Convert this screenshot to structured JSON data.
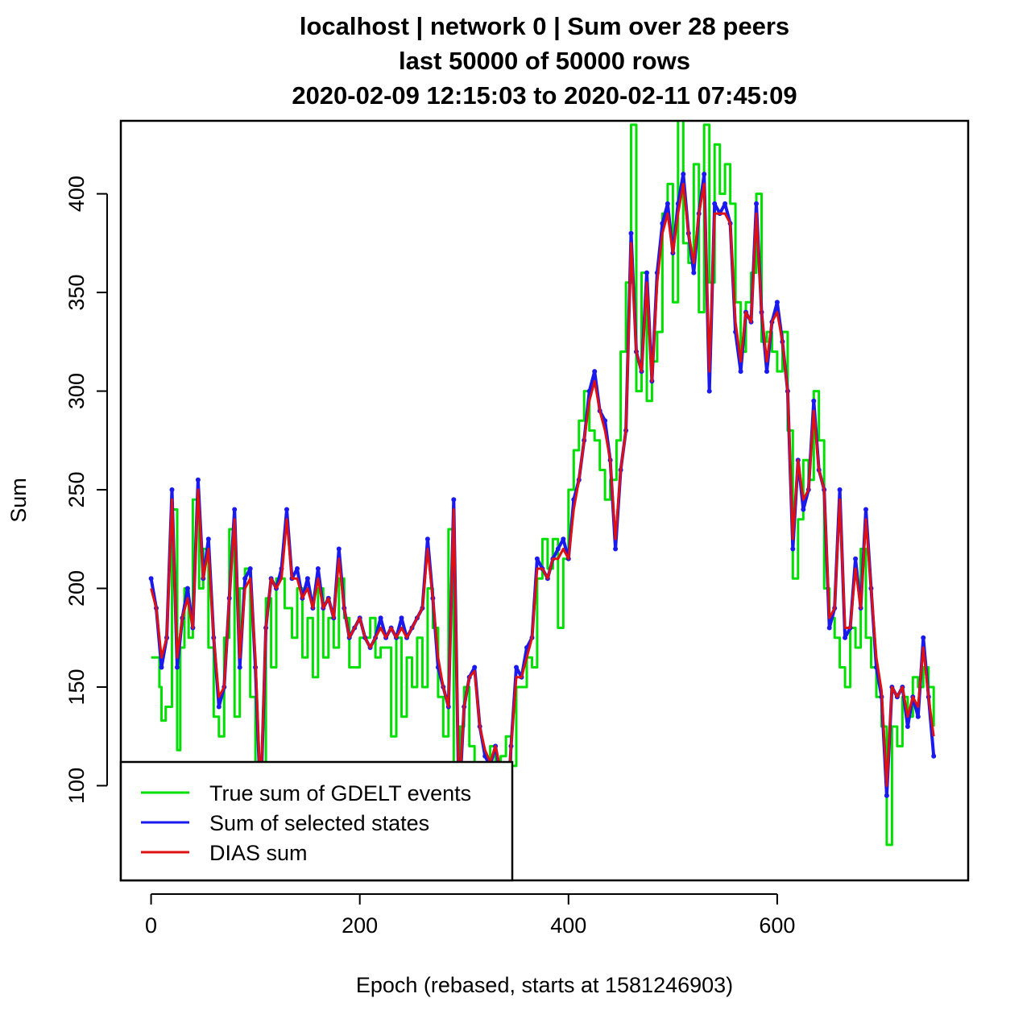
{
  "chart_data": {
    "type": "line",
    "title": [
      "localhost | network 0 | Sum over 28 peers",
      "last 50000 of 50000 rows",
      "2020-02-09 12:15:03 to 2020-02-11 07:45:09"
    ],
    "xlabel": "Epoch (rebased, starts at 1581246903)",
    "ylabel": "Sum",
    "xlim": [
      -29,
      783
    ],
    "ylim": [
      52,
      437
    ],
    "x_ticks": [
      0,
      200,
      400,
      600
    ],
    "y_ticks": [
      100,
      150,
      200,
      250,
      300,
      350,
      400
    ],
    "grid": false,
    "legend_position": "bottom-left",
    "series": [
      {
        "name": "True sum of GDELT events",
        "color": "#00e000",
        "style": "step",
        "x": [
          0,
          8,
          10,
          14,
          20,
          25,
          28,
          32,
          36,
          40,
          46,
          50,
          55,
          60,
          65,
          70,
          75,
          80,
          85,
          90,
          95,
          100,
          104,
          110,
          115,
          120,
          128,
          135,
          140,
          145,
          150,
          155,
          160,
          165,
          170,
          175,
          180,
          185,
          190,
          200,
          210,
          215,
          220,
          230,
          235,
          240,
          245,
          250,
          255,
          260,
          265,
          270,
          275,
          280,
          285,
          290,
          296,
          300,
          305,
          310,
          318,
          325,
          330,
          335,
          340,
          345,
          350,
          360,
          365,
          370,
          375,
          380,
          385,
          390,
          395,
          400,
          405,
          410,
          415,
          420,
          425,
          430,
          435,
          440,
          446,
          450,
          455,
          460,
          465,
          470,
          475,
          480,
          485,
          490,
          495,
          500,
          505,
          510,
          515,
          520,
          525,
          530,
          535,
          540,
          545,
          550,
          555,
          560,
          565,
          570,
          575,
          580,
          585,
          590,
          595,
          600,
          605,
          610,
          615,
          620,
          625,
          630,
          635,
          640,
          645,
          650,
          655,
          660,
          665,
          670,
          675,
          680,
          685,
          690,
          695,
          700,
          705,
          710,
          715,
          720,
          725,
          730,
          735,
          740,
          745,
          750
        ],
        "y": [
          165,
          150,
          133,
          140,
          240,
          118,
          170,
          200,
          175,
          245,
          200,
          220,
          170,
          135,
          125,
          175,
          230,
          135,
          200,
          210,
          145,
          100,
          60,
          195,
          160,
          205,
          190,
          175,
          200,
          165,
          185,
          155,
          200,
          165,
          185,
          170,
          205,
          185,
          160,
          175,
          185,
          165,
          170,
          125,
          175,
          135,
          165,
          150,
          175,
          150,
          200,
          180,
          145,
          125,
          230,
          55,
          130,
          150,
          120,
          100,
          80,
          120,
          55,
          115,
          125,
          110,
          150,
          165,
          160,
          205,
          225,
          210,
          225,
          180,
          215,
          250,
          270,
          285,
          300,
          280,
          275,
          260,
          245,
          255,
          275,
          320,
          355,
          435,
          300,
          360,
          295,
          315,
          330,
          390,
          405,
          345,
          440,
          375,
          365,
          415,
          340,
          435,
          355,
          425,
          400,
          415,
          395,
          345,
          320,
          345,
          360,
          400,
          325,
          330,
          320,
          310,
          330,
          280,
          205,
          235,
          265,
          255,
          300,
          275,
          200,
          185,
          175,
          160,
          150,
          180,
          170,
          220,
          175,
          160,
          145,
          130,
          70,
          130,
          120,
          145,
          135,
          155,
          150,
          160,
          150,
          130
        ]
      },
      {
        "name": "Sum of selected states",
        "color": "#1a1aee",
        "style": "line",
        "x": [
          0,
          5,
          10,
          15,
          20,
          25,
          30,
          35,
          40,
          45,
          50,
          55,
          60,
          65,
          70,
          75,
          80,
          85,
          90,
          95,
          100,
          105,
          110,
          115,
          120,
          125,
          130,
          135,
          140,
          145,
          150,
          155,
          160,
          165,
          170,
          175,
          180,
          185,
          190,
          195,
          200,
          205,
          210,
          215,
          220,
          225,
          230,
          235,
          240,
          245,
          250,
          255,
          260,
          265,
          270,
          275,
          280,
          285,
          290,
          295,
          300,
          305,
          310,
          315,
          320,
          325,
          330,
          335,
          340,
          345,
          350,
          355,
          360,
          365,
          370,
          375,
          380,
          385,
          390,
          395,
          400,
          405,
          410,
          415,
          420,
          425,
          430,
          435,
          440,
          445,
          450,
          455,
          460,
          465,
          470,
          475,
          480,
          485,
          490,
          495,
          500,
          505,
          510,
          515,
          520,
          525,
          530,
          535,
          540,
          545,
          550,
          555,
          560,
          565,
          570,
          575,
          580,
          585,
          590,
          595,
          600,
          605,
          610,
          615,
          620,
          625,
          630,
          635,
          640,
          645,
          650,
          655,
          660,
          665,
          670,
          675,
          680,
          685,
          690,
          695,
          700,
          705,
          710,
          715,
          720,
          725,
          730,
          735,
          740,
          745,
          750
        ],
        "y": [
          205,
          190,
          160,
          175,
          250,
          160,
          185,
          200,
          180,
          255,
          205,
          225,
          175,
          140,
          150,
          195,
          240,
          160,
          205,
          210,
          160,
          90,
          180,
          205,
          200,
          210,
          240,
          205,
          210,
          195,
          205,
          190,
          210,
          190,
          195,
          185,
          220,
          190,
          175,
          180,
          185,
          175,
          170,
          175,
          185,
          175,
          180,
          175,
          185,
          175,
          180,
          185,
          190,
          225,
          195,
          160,
          150,
          140,
          245,
          90,
          140,
          155,
          160,
          130,
          115,
          110,
          120,
          105,
          75,
          120,
          160,
          155,
          170,
          175,
          215,
          210,
          205,
          215,
          220,
          225,
          215,
          245,
          255,
          275,
          300,
          310,
          290,
          285,
          265,
          220,
          260,
          280,
          380,
          320,
          310,
          360,
          305,
          360,
          385,
          395,
          370,
          395,
          410,
          380,
          360,
          390,
          410,
          300,
          395,
          390,
          395,
          385,
          330,
          310,
          340,
          335,
          395,
          340,
          310,
          335,
          345,
          325,
          300,
          220,
          265,
          240,
          250,
          295,
          260,
          250,
          180,
          190,
          250,
          175,
          180,
          215,
          190,
          240,
          200,
          160,
          145,
          95,
          150,
          145,
          150,
          130,
          145,
          135,
          175,
          145,
          115
        ]
      },
      {
        "name": "DIAS sum",
        "color": "#e01010",
        "style": "line",
        "x": [
          0,
          5,
          10,
          15,
          20,
          25,
          30,
          35,
          40,
          45,
          50,
          55,
          60,
          65,
          70,
          75,
          80,
          85,
          90,
          95,
          100,
          105,
          110,
          115,
          120,
          125,
          130,
          135,
          140,
          145,
          150,
          155,
          160,
          165,
          170,
          175,
          180,
          185,
          190,
          195,
          200,
          205,
          210,
          215,
          220,
          225,
          230,
          235,
          240,
          245,
          250,
          255,
          260,
          265,
          270,
          275,
          280,
          285,
          290,
          295,
          300,
          305,
          310,
          315,
          320,
          325,
          330,
          335,
          340,
          345,
          350,
          355,
          360,
          365,
          370,
          375,
          380,
          385,
          390,
          395,
          400,
          405,
          410,
          415,
          420,
          425,
          430,
          435,
          440,
          445,
          450,
          455,
          460,
          465,
          470,
          475,
          480,
          485,
          490,
          495,
          500,
          505,
          510,
          515,
          520,
          525,
          530,
          535,
          540,
          545,
          550,
          555,
          560,
          565,
          570,
          575,
          580,
          585,
          590,
          595,
          600,
          605,
          610,
          615,
          620,
          625,
          630,
          635,
          640,
          645,
          650,
          655,
          660,
          665,
          670,
          675,
          680,
          685,
          690,
          695,
          700,
          705,
          710,
          715,
          720,
          725,
          730,
          735,
          740,
          745,
          750
        ],
        "y": [
          200,
          190,
          165,
          175,
          245,
          165,
          185,
          195,
          180,
          250,
          205,
          220,
          175,
          145,
          150,
          195,
          235,
          165,
          200,
          205,
          165,
          95,
          180,
          205,
          200,
          205,
          235,
          205,
          205,
          195,
          200,
          190,
          205,
          190,
          195,
          185,
          215,
          190,
          175,
          180,
          185,
          175,
          170,
          175,
          180,
          175,
          180,
          175,
          180,
          175,
          180,
          185,
          190,
          220,
          195,
          165,
          150,
          140,
          240,
          95,
          140,
          155,
          158,
          130,
          118,
          112,
          120,
          108,
          80,
          120,
          155,
          155,
          165,
          175,
          210,
          210,
          205,
          215,
          215,
          220,
          215,
          240,
          255,
          275,
          295,
          305,
          290,
          280,
          265,
          225,
          260,
          280,
          375,
          320,
          310,
          355,
          305,
          355,
          380,
          390,
          370,
          390,
          405,
          380,
          365,
          390,
          405,
          310,
          390,
          390,
          390,
          385,
          335,
          315,
          340,
          335,
          390,
          340,
          315,
          335,
          340,
          325,
          300,
          225,
          265,
          245,
          250,
          290,
          260,
          250,
          185,
          190,
          245,
          180,
          180,
          210,
          190,
          235,
          200,
          165,
          148,
          100,
          150,
          145,
          150,
          135,
          145,
          140,
          170,
          145,
          125
        ]
      }
    ]
  }
}
